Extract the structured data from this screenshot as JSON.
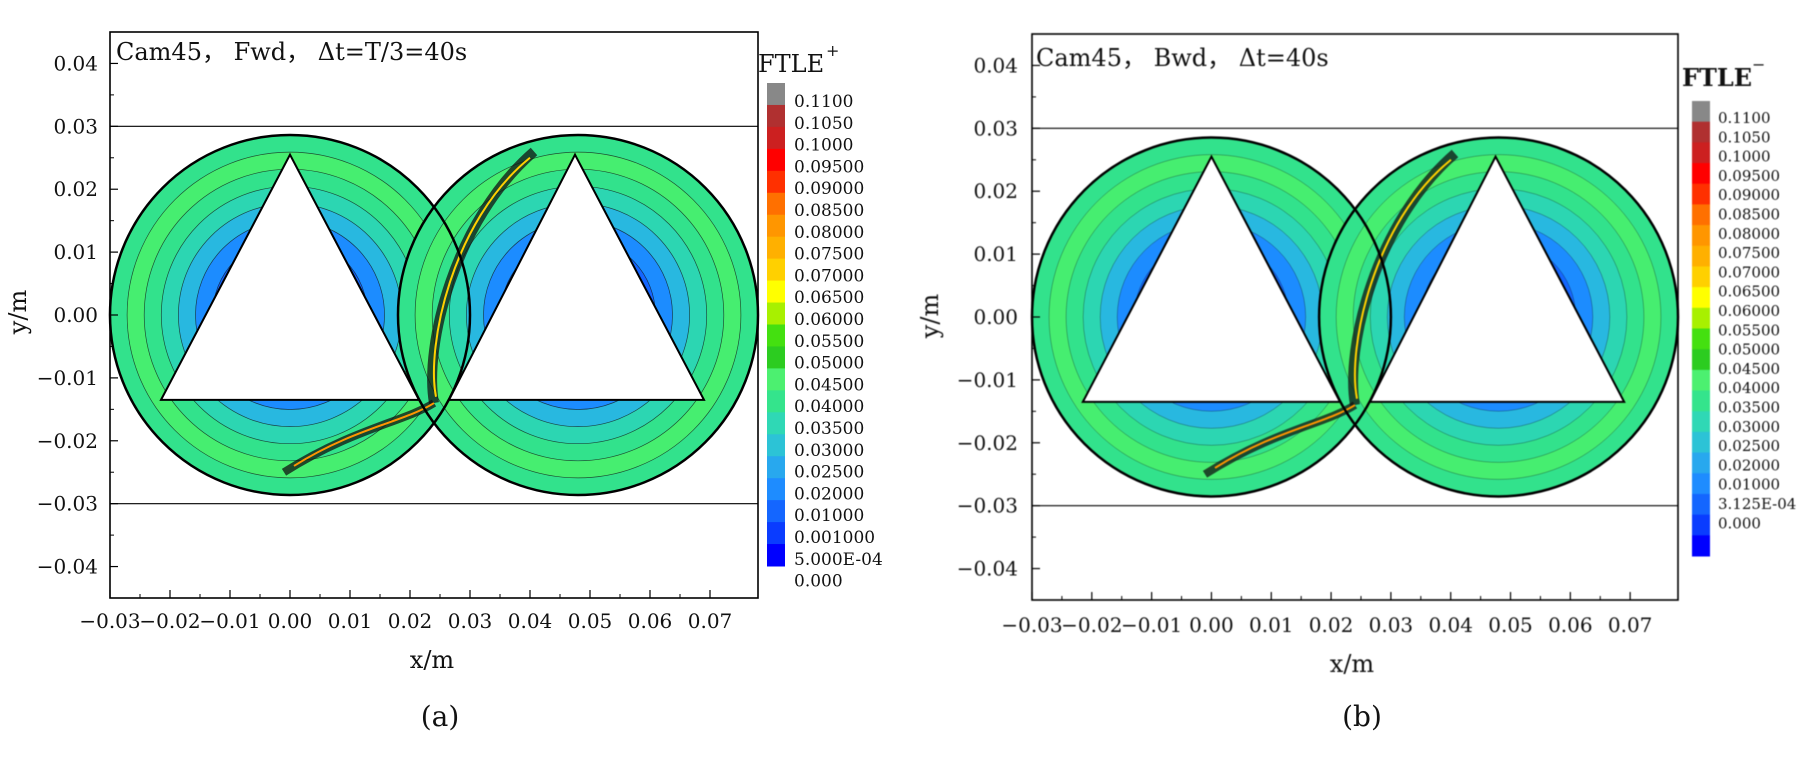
{
  "colors": {
    "legend": [
      "#0000ff",
      "#0a3cff",
      "#1466ff",
      "#1e8cff",
      "#28a8ee",
      "#2cc3d6",
      "#2fd8b5",
      "#34e48c",
      "#4cf070",
      "#2ccc20",
      "#44e010",
      "#a8f000",
      "#ffff00",
      "#ffd000",
      "#ffb000",
      "#ff9600",
      "#ff7000",
      "#ff3000",
      "#ff0000",
      "#cc2020",
      "#b03030",
      "#888888"
    ],
    "inner_blue": "#0a2fe0",
    "mid_blue": "#1c8cff",
    "green_ring": "#32e28c",
    "bright_green": "#46ee70",
    "contour_line": "#111111"
  },
  "chart_data": [
    {
      "panel": "(a)",
      "type": "heatmap",
      "title": "Cam45， Fwd， Δt=T/3=40s",
      "xlabel": "x/m",
      "ylabel": "y/m",
      "xlim": [
        -0.03,
        0.078
      ],
      "ylim": [
        -0.045,
        0.045
      ],
      "x_ticks": [
        -0.03,
        -0.02,
        -0.01,
        0.0,
        0.01,
        0.02,
        0.03,
        0.04,
        0.05,
        0.06,
        0.07
      ],
      "x_tick_labels": [
        "−0.03",
        "−0.02",
        "−0.01",
        "0.00",
        "0.01",
        "0.02",
        "0.03",
        "0.04",
        "0.05",
        "0.06",
        "0.07"
      ],
      "y_ticks": [
        0.04,
        0.03,
        0.02,
        0.01,
        0.0,
        -0.01,
        -0.02,
        -0.03,
        -0.04
      ],
      "y_tick_labels": [
        "0.04",
        "0.03",
        "0.02",
        "0.01",
        "0.00",
        "−0.01",
        "−0.02",
        "−0.03",
        "−0.04"
      ],
      "hlines": [
        0.03,
        -0.03
      ],
      "circles": [
        {
          "cx": 0.0,
          "cy": 0.0,
          "r": 0.03
        },
        {
          "cx": 0.048,
          "cy": 0.0,
          "r": 0.03
        }
      ],
      "triangles": [
        [
          [
            -0.0215,
            -0.0135
          ],
          [
            0.0,
            0.0255
          ],
          [
            0.0215,
            -0.0135
          ]
        ],
        [
          [
            0.0265,
            -0.0135
          ],
          [
            0.0475,
            0.0255
          ],
          [
            0.069,
            -0.0135
          ]
        ]
      ],
      "colorbar": {
        "title": "FTLE",
        "sup": "+",
        "labels": [
          "0.1100",
          "0.1050",
          "0.1000",
          "0.09500",
          "0.09000",
          "0.08500",
          "0.08000",
          "0.07500",
          "0.07000",
          "0.06500",
          "0.06000",
          "0.05500",
          "0.05000",
          "0.04500",
          "0.04000",
          "0.03500",
          "0.03000",
          "0.02500",
          "0.02000",
          "0.01000",
          "0.001000",
          "5.000E-04",
          "0.000"
        ]
      },
      "caption": "(a)"
    },
    {
      "panel": "(b)",
      "type": "heatmap",
      "title": "Cam45， Bwd， Δt=40s",
      "xlabel": "x/m",
      "ylabel": "y/m",
      "xlim": [
        -0.03,
        0.078
      ],
      "ylim": [
        -0.045,
        0.045
      ],
      "x_ticks": [
        -0.03,
        -0.02,
        -0.01,
        0.0,
        0.01,
        0.02,
        0.03,
        0.04,
        0.05,
        0.06,
        0.07
      ],
      "x_tick_labels": [
        "−0.03",
        "−0.02",
        "−0.01",
        "0.00",
        "0.01",
        "0.02",
        "0.03",
        "0.04",
        "0.05",
        "0.06",
        "0.07"
      ],
      "y_ticks": [
        0.04,
        0.03,
        0.02,
        0.01,
        0.0,
        -0.01,
        -0.02,
        -0.03,
        -0.04
      ],
      "y_tick_labels": [
        "0.04",
        "0.03",
        "0.02",
        "0.01",
        "0.00",
        "−0.01",
        "−0.02",
        "−0.03",
        "−0.04"
      ],
      "hlines": [
        0.03,
        -0.03
      ],
      "circles": [
        {
          "cx": 0.0,
          "cy": 0.0,
          "r": 0.03
        },
        {
          "cx": 0.048,
          "cy": 0.0,
          "r": 0.03
        }
      ],
      "triangles": [
        [
          [
            -0.0215,
            -0.0135
          ],
          [
            0.0,
            0.0255
          ],
          [
            0.0215,
            -0.0135
          ]
        ],
        [
          [
            0.0265,
            -0.0135
          ],
          [
            0.0475,
            0.0255
          ],
          [
            0.069,
            -0.0135
          ]
        ]
      ],
      "colorbar": {
        "title": "FTLE",
        "sup": "−",
        "labels": [
          "0.1100",
          "0.1050",
          "0.1000",
          "0.09500",
          "0.09000",
          "0.08500",
          "0.08000",
          "0.07500",
          "0.07000",
          "0.06500",
          "0.06000",
          "0.05500",
          "0.05000",
          "0.04500",
          "0.04000",
          "0.03500",
          "0.03000",
          "0.02500",
          "0.02000",
          "0.01000",
          "3.125E-04",
          "0.000"
        ]
      },
      "caption": "(b)"
    }
  ]
}
